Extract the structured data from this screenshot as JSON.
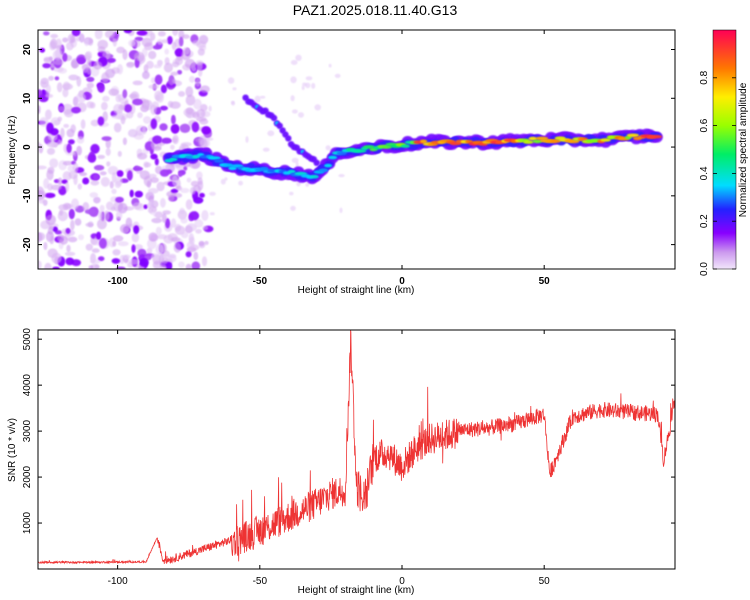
{
  "figure": {
    "title": "PAZ1.2025.018.11.40.G13"
  },
  "chart_data": [
    {
      "type": "heatmap",
      "xlabel": "Height of straight line (km)",
      "ylabel": "Frequency (Hz)",
      "xlim": [
        -128,
        96
      ],
      "ylim": [
        -25,
        24
      ],
      "xticks": [
        -100,
        -50,
        0,
        50
      ],
      "yticks": [
        -20,
        -10,
        0,
        10,
        20
      ],
      "colorbar": {
        "label": "Normalized spectral amplitude",
        "range": [
          0,
          1
        ],
        "ticks": [
          0.0,
          0.2,
          0.4,
          0.6,
          0.8
        ],
        "colormap": "rainbow"
      },
      "features": [
        {
          "description": "main frequency track",
          "x": [
            -82,
            -70,
            -60,
            -45,
            -30,
            -22,
            -15,
            -8,
            0,
            10,
            30,
            50,
            70,
            90
          ],
          "y": [
            -2.5,
            -1.5,
            -4,
            -5,
            -6,
            -1,
            -0.5,
            0,
            0.5,
            1,
            1,
            1.5,
            1.5,
            2.5
          ]
        },
        {
          "description": "rising branch",
          "x": [
            -55,
            -45,
            -38,
            -30
          ],
          "y": [
            10,
            6,
            0,
            -3
          ]
        },
        {
          "description": "noise region",
          "x_range": [
            -128,
            -68
          ],
          "y_range": [
            -25,
            24
          ]
        }
      ]
    },
    {
      "type": "line",
      "xlabel": "Height of straight line (km)",
      "ylabel": "SNR (10 * v/v)",
      "xlim": [
        -128,
        96
      ],
      "ylim": [
        0,
        5200
      ],
      "xticks": [
        -100,
        -50,
        0,
        50
      ],
      "yticks": [
        1000,
        2000,
        3000,
        4000,
        5000
      ],
      "series": [
        {
          "color": "#ee3333",
          "x": [
            -128,
            -110,
            -90,
            -86,
            -84,
            -80,
            -70,
            -60,
            -50,
            -40,
            -30,
            -25,
            -20,
            -18,
            -16,
            -13,
            -10,
            -5,
            0,
            5,
            10,
            20,
            30,
            40,
            50,
            52,
            60,
            70,
            80,
            90,
            92,
            96
          ],
          "y": [
            150,
            150,
            160,
            700,
            200,
            250,
            450,
            650,
            900,
            1200,
            1500,
            1700,
            1800,
            5100,
            1900,
            1600,
            2500,
            2600,
            2300,
            2700,
            2900,
            3050,
            3100,
            3200,
            3400,
            2100,
            3350,
            3500,
            3450,
            3400,
            2400,
            3700
          ]
        }
      ]
    }
  ]
}
